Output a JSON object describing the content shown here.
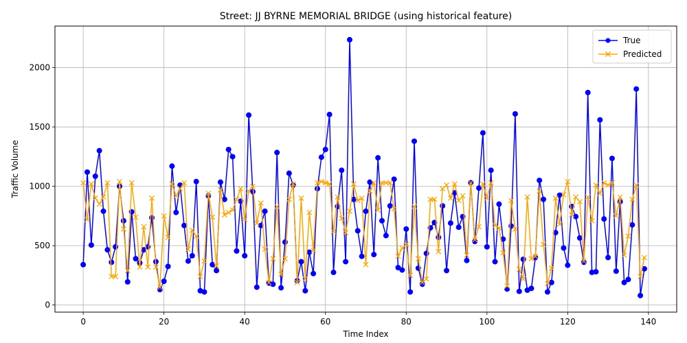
{
  "chart_data": {
    "type": "line",
    "title": "Street: JJ BYRNE MEMORIAL BRIDGE (using historical feature)",
    "xlabel": "Time Index",
    "ylabel": "Traffic Volume",
    "xlim": [
      -7,
      147
    ],
    "ylim": [
      -60,
      2350
    ],
    "xticks": [
      0,
      20,
      40,
      60,
      80,
      100,
      120,
      140
    ],
    "yticks": [
      0,
      500,
      1000,
      1500,
      2000
    ],
    "grid": true,
    "legend_position": "top-right",
    "series": [
      {
        "name": "True",
        "color": "#0000ff",
        "marker": "circle",
        "values": [
          340,
          1120,
          505,
          1085,
          1300,
          790,
          465,
          360,
          490,
          1000,
          710,
          195,
          785,
          390,
          355,
          465,
          490,
          735,
          365,
          130,
          200,
          325,
          1170,
          780,
          1010,
          670,
          370,
          415,
          1040,
          120,
          110,
          920,
          340,
          290,
          1035,
          890,
          1310,
          1250,
          455,
          875,
          415,
          1600,
          955,
          150,
          670,
          790,
          185,
          175,
          1285,
          145,
          530,
          1110,
          1010,
          205,
          365,
          120,
          445,
          265,
          980,
          1245,
          1310,
          1605,
          275,
          830,
          1135,
          365,
          2235,
          890,
          625,
          410,
          790,
          1035,
          425,
          1240,
          710,
          585,
          835,
          1060,
          315,
          295,
          640,
          110,
          1380,
          310,
          175,
          435,
          650,
          695,
          570,
          835,
          290,
          690,
          945,
          655,
          745,
          375,
          1030,
          535,
          985,
          1450,
          490,
          1135,
          365,
          850,
          555,
          135,
          665,
          1610,
          115,
          385,
          125,
          140,
          400,
          1050,
          890,
          110,
          190,
          610,
          925,
          480,
          335,
          830,
          745,
          565,
          360,
          1790,
          275,
          280,
          1560,
          725,
          400,
          1235,
          285,
          870,
          190,
          215,
          675,
          1820,
          80,
          305
        ]
      },
      {
        "name": "Predicted",
        "color": "#ffa500",
        "marker": "x",
        "values": [
          1030,
          720,
          1020,
          900,
          850,
          910,
          1030,
          240,
          240,
          1040,
          640,
          290,
          1030,
          740,
          320,
          660,
          320,
          900,
          320,
          150,
          750,
          570,
          1020,
          920,
          980,
          1030,
          470,
          630,
          580,
          240,
          370,
          940,
          740,
          330,
          970,
          760,
          780,
          800,
          890,
          980,
          720,
          960,
          1000,
          690,
          860,
          470,
          190,
          390,
          830,
          260,
          390,
          890,
          1020,
          190,
          900,
          220,
          780,
          460,
          1030,
          1040,
          1030,
          1020,
          620,
          910,
          730,
          610,
          790,
          1020,
          880,
          900,
          340,
          960,
          1030,
          800,
          1030,
          1030,
          1030,
          810,
          410,
          480,
          510,
          250,
          830,
          390,
          190,
          220,
          890,
          890,
          450,
          980,
          1010,
          900,
          1020,
          880,
          920,
          420,
          1030,
          550,
          660,
          1020,
          900,
          1030,
          670,
          650,
          440,
          160,
          880,
          640,
          300,
          220,
          910,
          390,
          410,
          960,
          510,
          180,
          310,
          900,
          680,
          930,
          1040,
          760,
          910,
          870,
          370,
          910,
          710,
          1010,
          940,
          1030,
          1010,
          1030,
          750,
          910,
          420,
          580,
          890,
          1010,
          240,
          400
        ]
      }
    ]
  }
}
